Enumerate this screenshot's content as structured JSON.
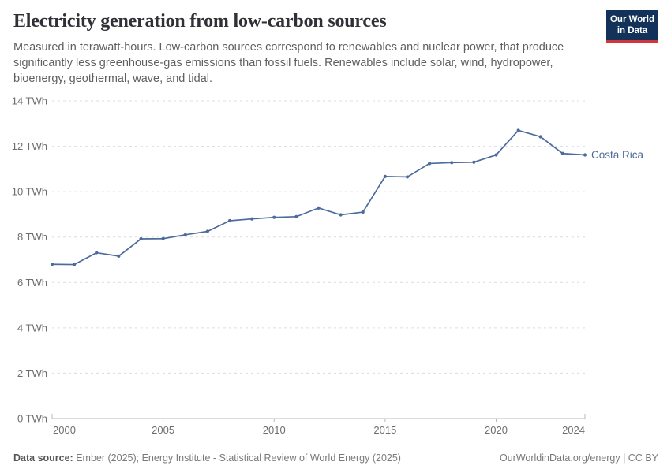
{
  "header": {
    "title": "Electricity generation from low-carbon sources",
    "subtitle": "Measured in terawatt-hours. Low-carbon sources correspond to renewables and nuclear power, that produce significantly less greenhouse-gas emissions than fossil fuels. Renewables include solar, wind, hydropower, bioenergy, geothermal, wave, and tidal.",
    "logo": {
      "line1": "Our World",
      "line2": "in Data"
    }
  },
  "chart_data": {
    "type": "line",
    "title": "Electricity generation from low-carbon sources",
    "x": [
      2000,
      2001,
      2002,
      2003,
      2004,
      2005,
      2006,
      2007,
      2008,
      2009,
      2010,
      2011,
      2012,
      2013,
      2014,
      2015,
      2016,
      2017,
      2018,
      2019,
      2020,
      2021,
      2022,
      2023,
      2024
    ],
    "series": [
      {
        "name": "Costa Rica",
        "color": "#4c6a9c",
        "values": [
          6.8,
          6.79,
          7.31,
          7.16,
          7.92,
          7.93,
          8.1,
          8.25,
          8.72,
          8.8,
          8.87,
          8.9,
          9.28,
          8.98,
          9.1,
          10.67,
          10.65,
          11.24,
          11.28,
          11.3,
          11.62,
          12.7,
          12.42,
          11.68,
          11.62
        ]
      }
    ],
    "xlabel": "",
    "ylabel": "",
    "xlim": [
      2000,
      2024
    ],
    "ylim": [
      0,
      14
    ],
    "xticks": [
      2000,
      2005,
      2010,
      2015,
      2020,
      2024
    ],
    "yticks": [
      0,
      2,
      4,
      6,
      8,
      10,
      12,
      14
    ],
    "ytick_suffix": " TWh",
    "grid": "horizontal-dashed",
    "legend": "end-of-line-label",
    "colors": {
      "grid": "#dcdcdc",
      "axis": "#b8b8b8",
      "tick_label": "#6e6e6e"
    }
  },
  "footer": {
    "source_label": "Data source:",
    "source_text": " Ember (2025); Energy Institute - Statistical Review of World Energy (2025)",
    "right_text": "OurWorldinData.org/energy | CC BY"
  }
}
